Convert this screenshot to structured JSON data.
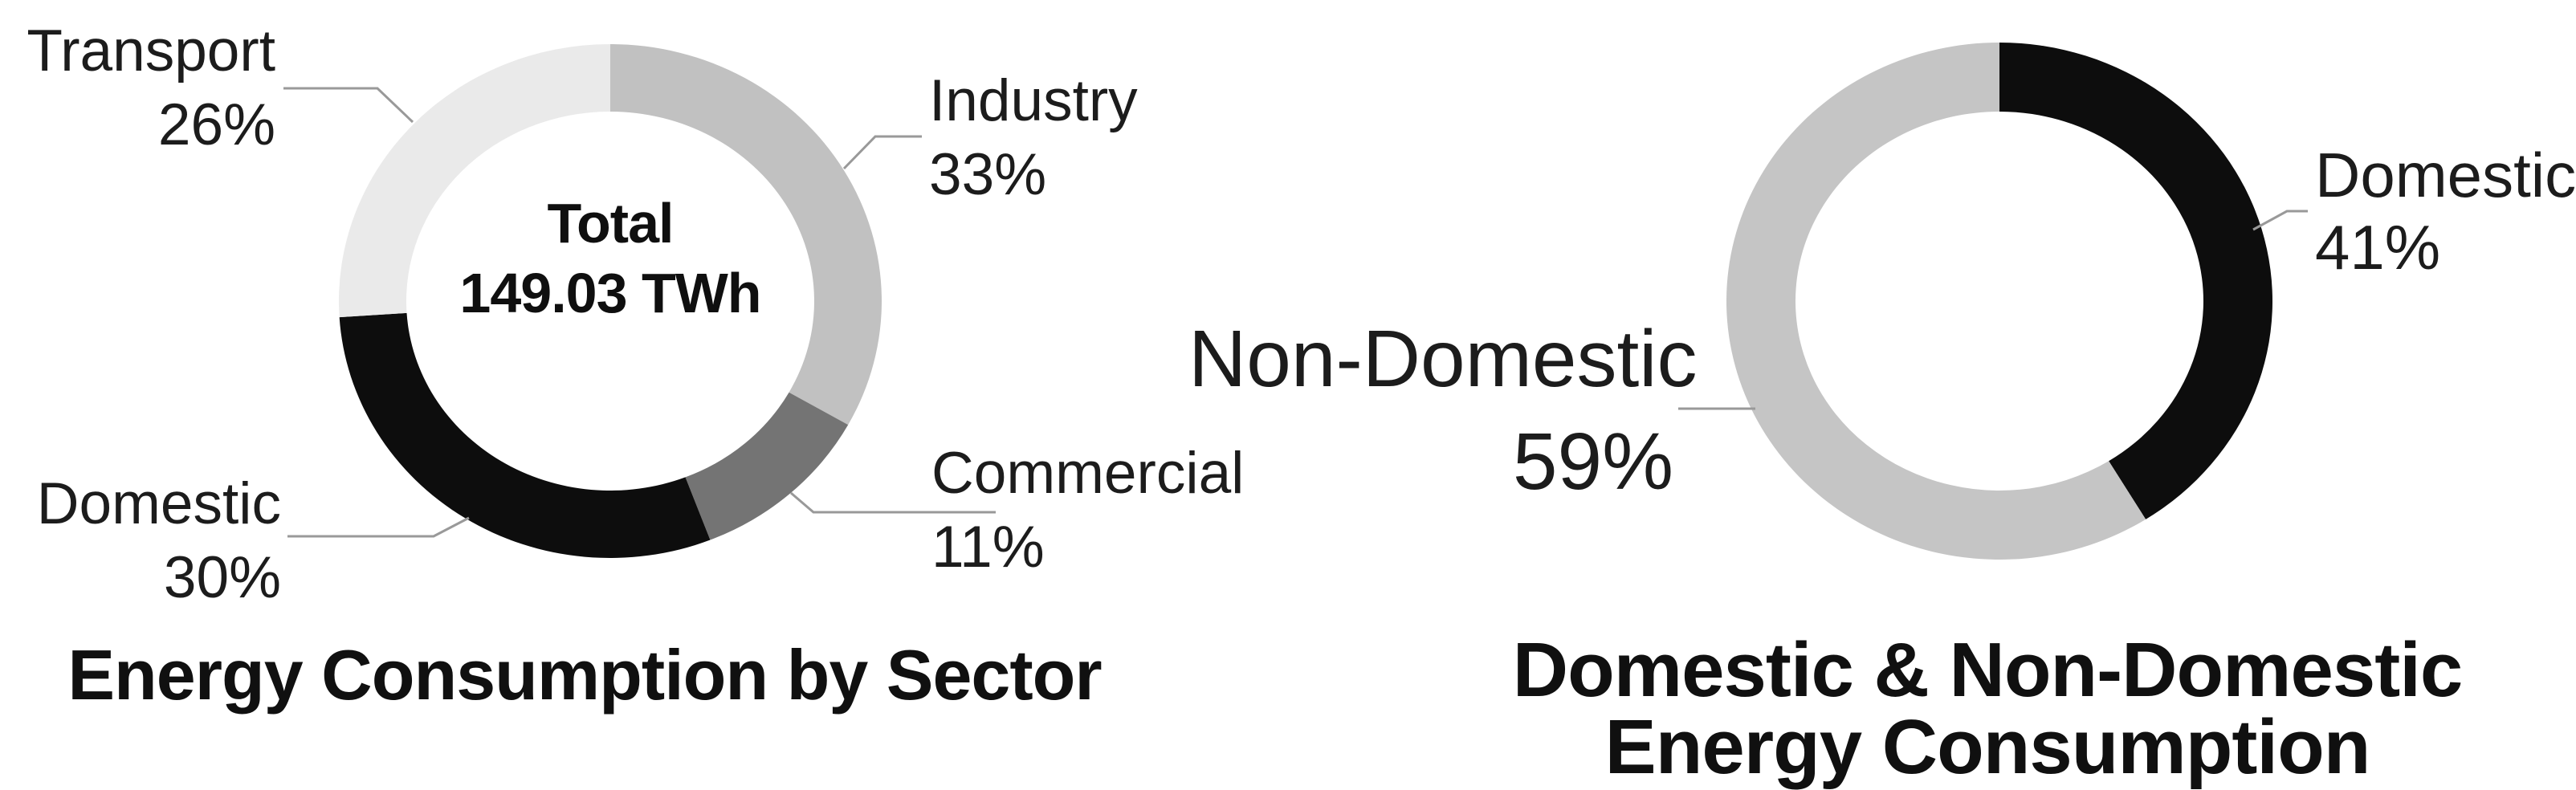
{
  "background_color": "#ffffff",
  "chart_data": [
    {
      "type": "donut",
      "title": "Energy Consumption by Sector",
      "center_label": {
        "line1": "Total",
        "line2": "149.03 TWh"
      },
      "start_angle_deg": 0,
      "direction": "clockwise",
      "legend_position": "callout-labels",
      "segments": [
        {
          "label": "Industry",
          "value": 33,
          "pct_label": "33%",
          "color": "#c1c1c1"
        },
        {
          "label": "Commercial",
          "value": 11,
          "pct_label": "11%",
          "color": "#747474"
        },
        {
          "label": "Domestic",
          "value": 30,
          "pct_label": "30%",
          "color": "#0d0d0d"
        },
        {
          "label": "Transport",
          "value": 26,
          "pct_label": "26%",
          "color": "#eaeaea"
        }
      ]
    },
    {
      "type": "donut",
      "title": "Domestic & Non-Domestic Energy Consumption",
      "title_lines": [
        "Domestic & Non-Domestic",
        "Energy Consumption"
      ],
      "start_angle_deg": 0,
      "direction": "clockwise",
      "legend_position": "callout-labels",
      "segments": [
        {
          "label": "Domestic",
          "value": 41,
          "pct_label": "41%",
          "color": "#0d0d0d"
        },
        {
          "label": "Non-Domestic",
          "value": 59,
          "pct_label": "59%",
          "color": "#c5c5c5"
        }
      ]
    }
  ],
  "leader_line_color": "#999999"
}
